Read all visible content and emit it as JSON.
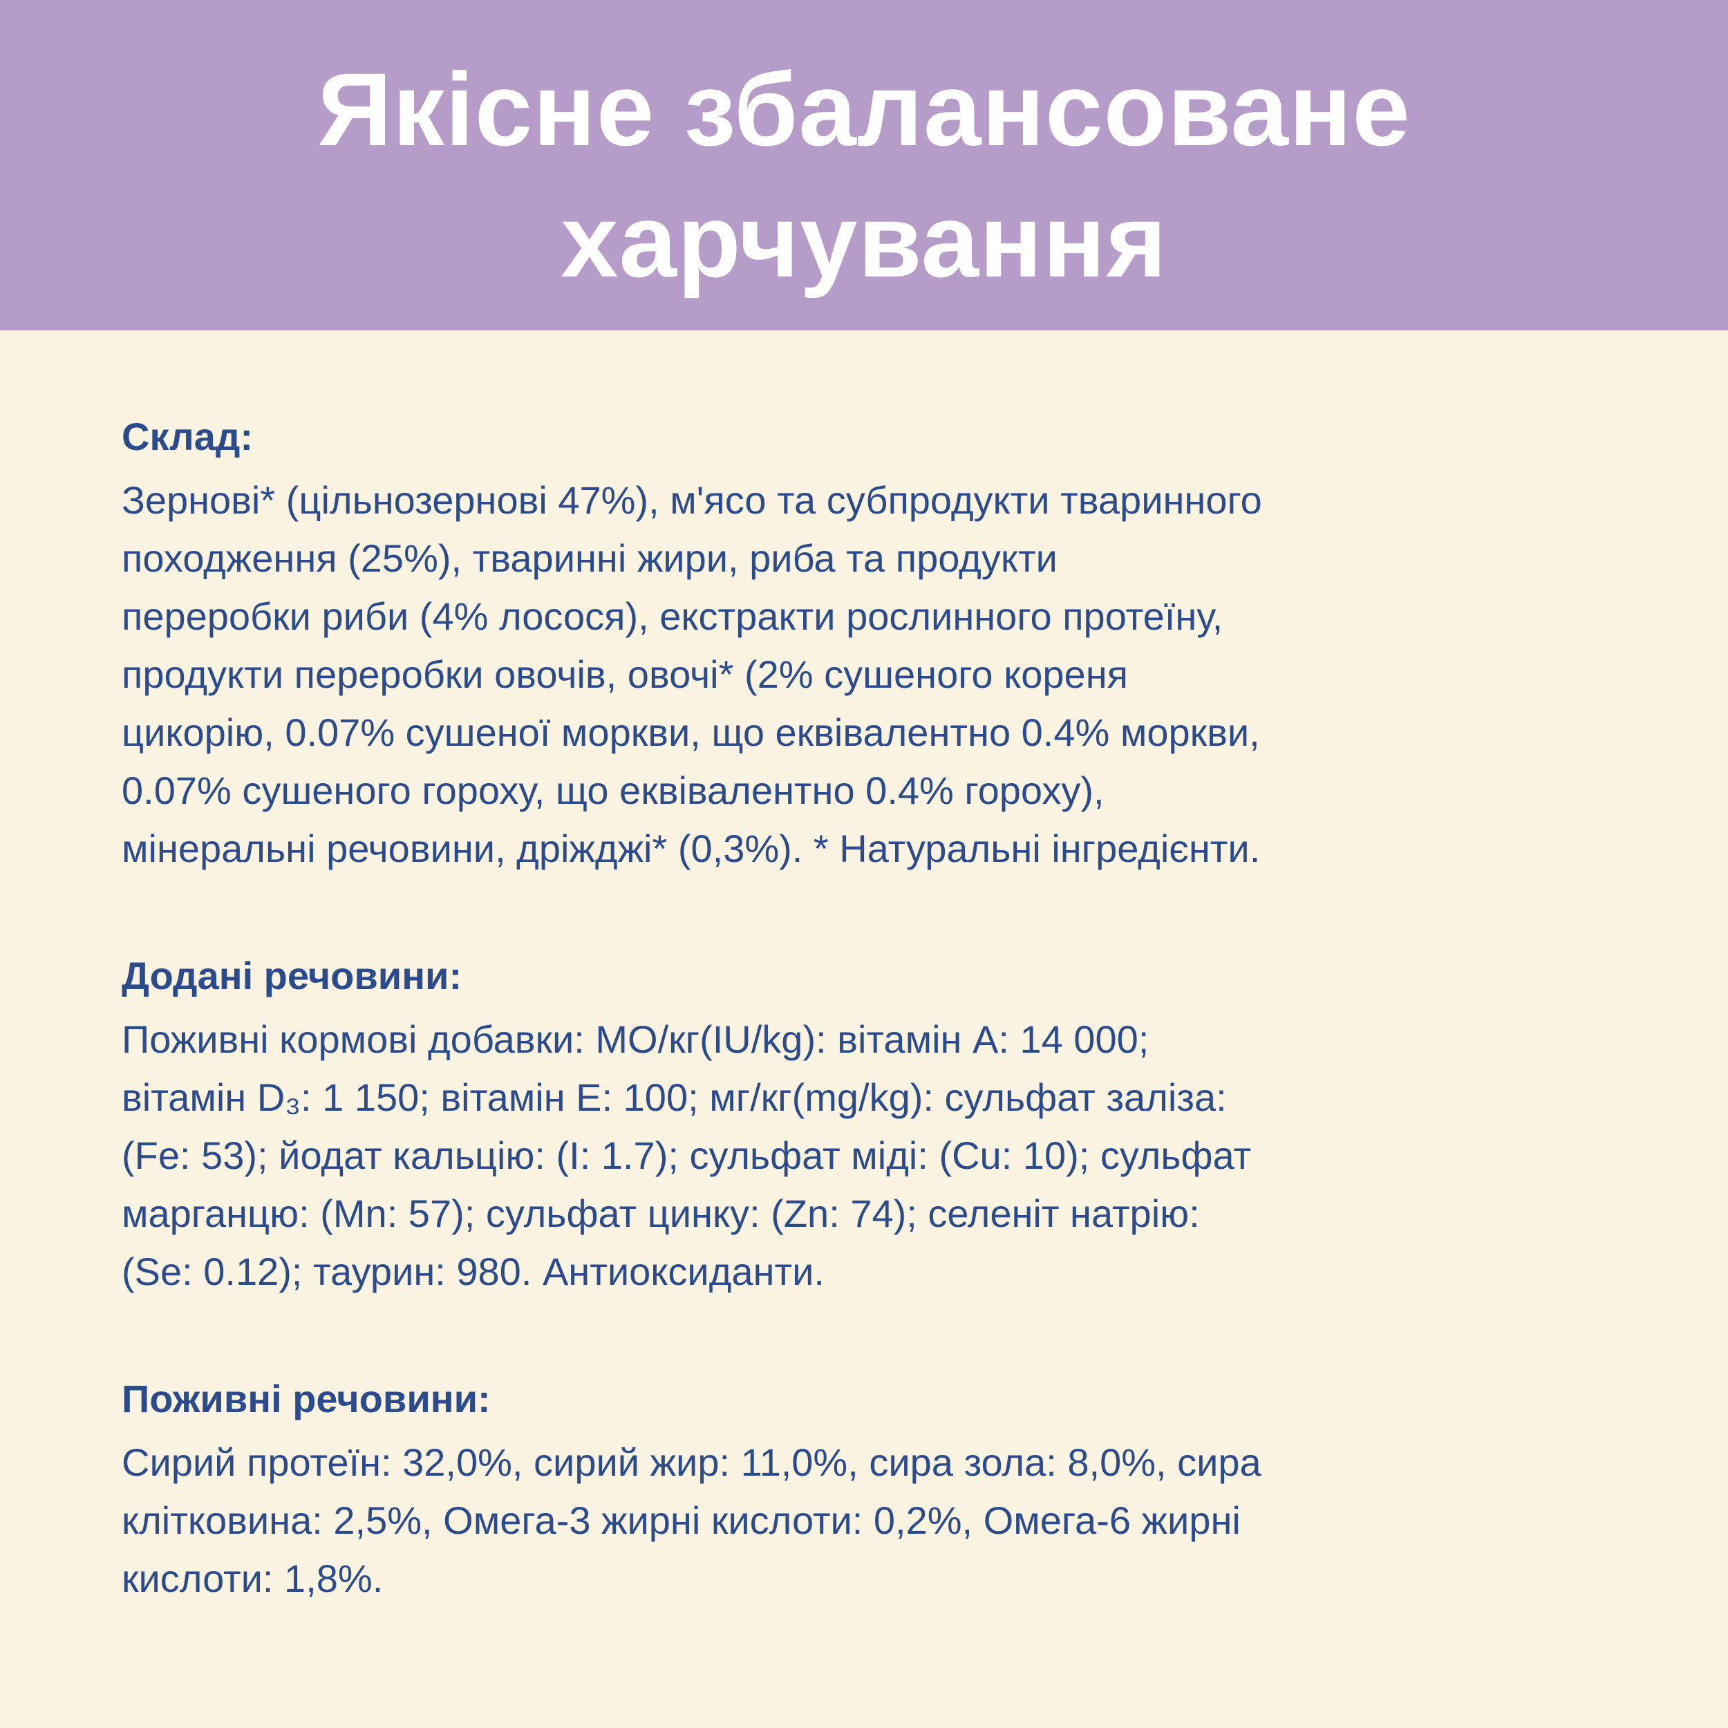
{
  "header": {
    "title_line1": "Якісне збалансоване",
    "title_line2": "харчування",
    "background_color": "#b69cc9",
    "text_color": "#ffffff"
  },
  "colors": {
    "body_background": "#fbf3e1",
    "text": "#2b4b8c"
  },
  "sections": {
    "composition": {
      "heading": "Склад:",
      "lines": [
        "Зернові* (цільнозернові 47%), м'ясо та субпродукти тваринного",
        "походження (25%), тваринні жири, риба та продукти",
        "переробки риби (4% лосося), екстракти рослинного протеїну,",
        "продукти переробки овочів, овочі* (2% сушеного кореня",
        "цикорію, 0.07% сушеної моркви, що еквівалентно 0.4% моркви,",
        "0.07% сушеного гороху, що еквівалентно 0.4% гороху),",
        "мінеральні речовини, дріжджі* (0,3%).  * Натуральні інгредієнти."
      ]
    },
    "additives": {
      "heading": "Додані речовини:",
      "lines": [
        "Поживні кормові добавки: МО/кг(IU/kg): вітамін A: 14 000;",
        "вітамін D₃: 1 150; вітамін E: 100; мг/кг(mg/kg): сульфат заліза:",
        "(Fe: 53); йодат кальцію: (I: 1.7); сульфат міді: (Cu: 10); сульфат",
        "марганцю: (Mn: 57); сульфат цинку: (Zn: 74); селеніт натрію:",
        "(Se: 0.12); таурин: 980. Антиоксиданти."
      ]
    },
    "nutrients": {
      "heading": "Поживні речовини:",
      "lines": [
        "Сирий протеїн: 32,0%, сирий жир: 11,0%, сира зола: 8,0%, сира",
        "клітковина: 2,5%, Омега-3 жирні кислоти: 0,2%, Омега-6 жирні",
        "кислоти: 1,8%."
      ]
    }
  }
}
